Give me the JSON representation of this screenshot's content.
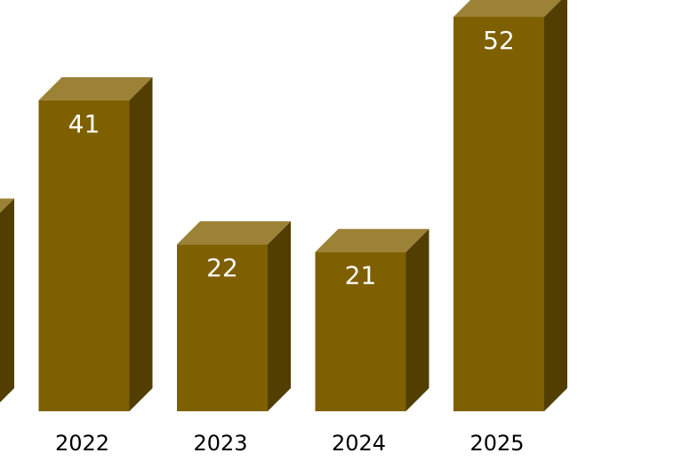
{
  "chart_data": {
    "type": "bar3d",
    "categories": [
      null,
      "2022",
      "2023",
      "2024",
      "2025"
    ],
    "values": [
      25,
      41,
      22,
      21,
      52
    ],
    "color": "#7f6000",
    "top_color": "#9c8236",
    "side_color": "#523e00"
  }
}
